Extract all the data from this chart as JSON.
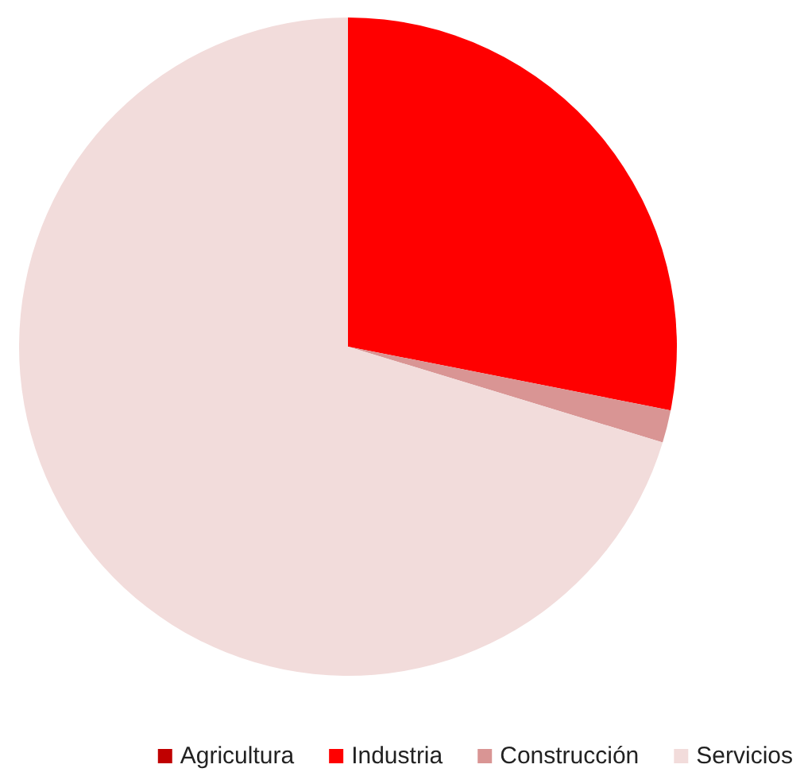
{
  "chart_data": {
    "type": "pie",
    "categories": [
      "Agricultura",
      "Industria",
      "Construcción",
      "Servicios"
    ],
    "values": [
      0,
      28.1,
      1.6,
      70.3
    ],
    "colors": [
      "#c00000",
      "#ff0000",
      "#d99594",
      "#f2dcdb"
    ],
    "legend": "bottom right"
  }
}
